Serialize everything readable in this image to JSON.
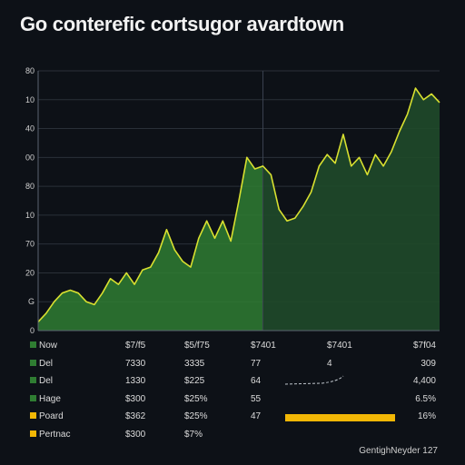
{
  "title": "Go conterefic cortsugor avardtown",
  "footer": "GentighNeyder 127",
  "colors": {
    "background": "#0d1117",
    "area_left": "#2f7d32",
    "area_right": "#1f4a2a",
    "line": "#d8e030",
    "accent": "#f2b705",
    "grid": "#2a3038"
  },
  "chart_data": {
    "type": "area",
    "title": "Go conterefic cortsugor avardtown",
    "xlabel": "",
    "ylabel": "",
    "y_tick_labels": [
      "0",
      "G",
      "20",
      "70",
      "10",
      "80",
      "00",
      "40",
      "10",
      "80"
    ],
    "x_tick_labels": [
      "$7/f5",
      "$5/f75",
      "$7401",
      "$7401",
      "$7f04"
    ],
    "ylim": [
      0,
      90
    ],
    "x": [
      0,
      2,
      4,
      6,
      8,
      10,
      12,
      14,
      16,
      18,
      20,
      22,
      24,
      26,
      28,
      30,
      32,
      34,
      36,
      38,
      40,
      42,
      44,
      46,
      48,
      50,
      52,
      54,
      56,
      58,
      60,
      62,
      64,
      66,
      68,
      70,
      72,
      74,
      76,
      78,
      80,
      82,
      84,
      86,
      88,
      90,
      92,
      94,
      96,
      98,
      100
    ],
    "values": [
      3,
      6,
      10,
      13,
      14,
      13,
      10,
      9,
      13,
      18,
      16,
      20,
      16,
      21,
      22,
      27,
      35,
      28,
      24,
      22,
      32,
      38,
      32,
      38,
      31,
      45,
      60,
      56,
      57,
      54,
      42,
      38,
      39,
      43,
      48,
      57,
      61,
      58,
      68,
      57,
      60,
      54,
      61,
      57,
      62,
      69,
      75,
      84,
      80,
      82,
      79
    ],
    "split_x": 56,
    "grid": true,
    "legend": "none"
  },
  "table": {
    "rows": [
      {
        "name": "Now",
        "swatch": "#2f7d32",
        "v1": "$7/f5",
        "v2": "$5/f75",
        "v3": "$7401",
        "v4": "$7401",
        "v5": "$7f04",
        "bar": 0
      },
      {
        "name": "Del",
        "swatch": "#2f7d32",
        "v1": "7330",
        "v2": "3335",
        "v3": "77",
        "v4": "4",
        "v5": "309",
        "bar": 0
      },
      {
        "name": "Del",
        "swatch": "#2f7d32",
        "v1": "1330",
        "v2": "$225",
        "v3": "64",
        "v4": "",
        "v5": "4,400",
        "bar": 0
      },
      {
        "name": "Hage",
        "swatch": "#2f7d32",
        "v1": "$300",
        "v2": "$25%",
        "v3": "55",
        "v4": "",
        "v5": "6.5%",
        "bar": 0
      },
      {
        "name": "Poard",
        "swatch": "#f2b705",
        "v1": "$362",
        "v2": "$25%",
        "v3": "47",
        "v4": "",
        "v5": "16%",
        "bar": 0.88
      },
      {
        "name": "Pertnac",
        "swatch": "#f2b705",
        "v1": "$300",
        "v2": "$7%",
        "v3": "",
        "v4": "",
        "v5": "",
        "bar": 0
      }
    ]
  }
}
